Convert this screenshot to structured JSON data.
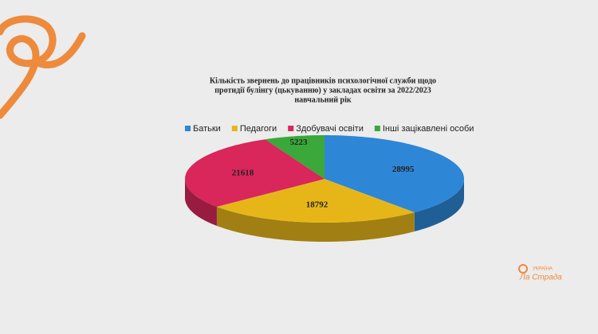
{
  "chart_data": {
    "type": "pie3d",
    "title": [
      "Кількість звернень до працівників психологічної служби щодо",
      "протидії булінгу (цькуванню) у закладах освіти за 2022/2023",
      "навчальний рік"
    ],
    "categories": [
      "Батьки",
      "Педагоги",
      "Здобувачі освіти",
      "Інші зацікавлені особи"
    ],
    "values": [
      28995,
      18792,
      21618,
      5223
    ],
    "colors": [
      "#2e86d6",
      "#e6b619",
      "#d9265b",
      "#3aa83a"
    ],
    "legend": "top"
  },
  "logo": {
    "country": "УКРАЇНА",
    "name": "Ла Страда"
  }
}
